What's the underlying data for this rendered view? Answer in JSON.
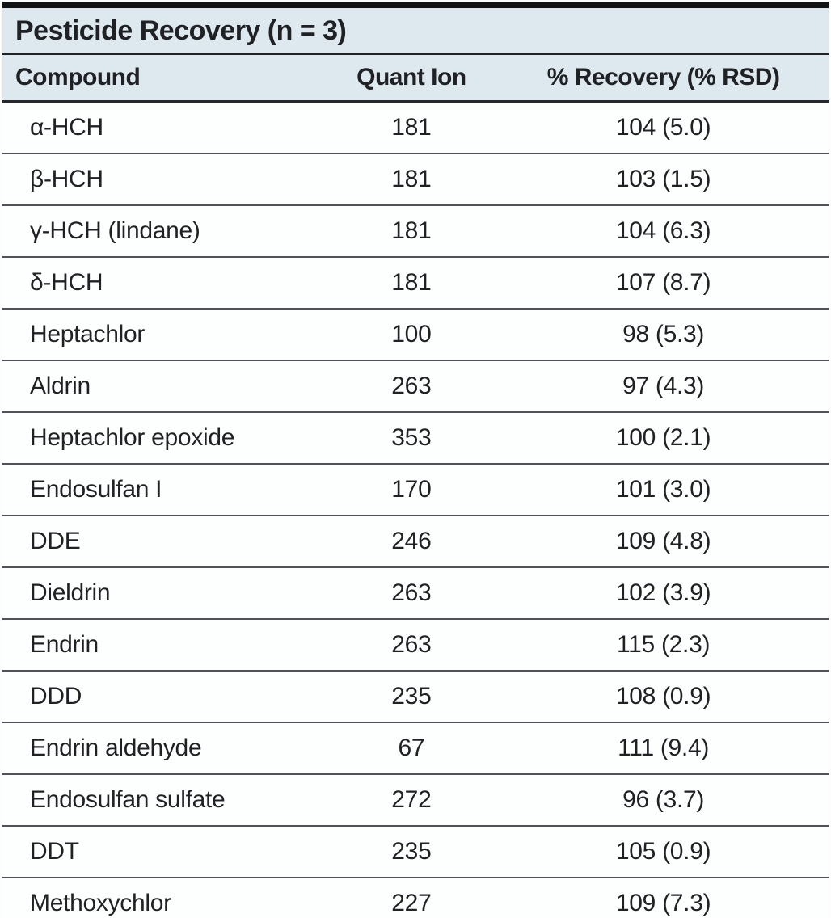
{
  "table": {
    "title": "Pesticide Recovery (n = 3)",
    "columns": [
      "Compound",
      "Quant Ion",
      "% Recovery (% RSD)"
    ],
    "rows": [
      {
        "compound": "α-HCH",
        "quant_ion": "181",
        "recovery": "104 (5.0)"
      },
      {
        "compound": "β-HCH",
        "quant_ion": "181",
        "recovery": "103 (1.5)"
      },
      {
        "compound": "γ-HCH (lindane)",
        "quant_ion": "181",
        "recovery": "104 (6.3)"
      },
      {
        "compound": "δ-HCH",
        "quant_ion": "181",
        "recovery": "107 (8.7)"
      },
      {
        "compound": "Heptachlor",
        "quant_ion": "100",
        "recovery": "98 (5.3)"
      },
      {
        "compound": "Aldrin",
        "quant_ion": "263",
        "recovery": "97 (4.3)"
      },
      {
        "compound": "Heptachlor epoxide",
        "quant_ion": "353",
        "recovery": "100 (2.1)"
      },
      {
        "compound": "Endosulfan I",
        "quant_ion": "170",
        "recovery": "101 (3.0)"
      },
      {
        "compound": "DDE",
        "quant_ion": "246",
        "recovery": "109 (4.8)"
      },
      {
        "compound": "Dieldrin",
        "quant_ion": "263",
        "recovery": "102 (3.9)"
      },
      {
        "compound": "Endrin",
        "quant_ion": "263",
        "recovery": "115 (2.3)"
      },
      {
        "compound": "DDD",
        "quant_ion": "235",
        "recovery": "108 (0.9)"
      },
      {
        "compound": "Endrin aldehyde",
        "quant_ion": "67",
        "recovery": "111 (9.4)"
      },
      {
        "compound": "Endosulfan sulfate",
        "quant_ion": "272",
        "recovery": "96 (3.7)"
      },
      {
        "compound": "DDT",
        "quant_ion": "235",
        "recovery": "105 (0.9)"
      },
      {
        "compound": "Methoxychlor",
        "quant_ion": "227",
        "recovery": "109 (7.3)"
      }
    ]
  },
  "colors": {
    "header_bg": "#dde9ee",
    "rule_heavy": "#121315",
    "rule_medium": "#26282b",
    "rule_light": "#505156",
    "text": "#1f2124"
  }
}
